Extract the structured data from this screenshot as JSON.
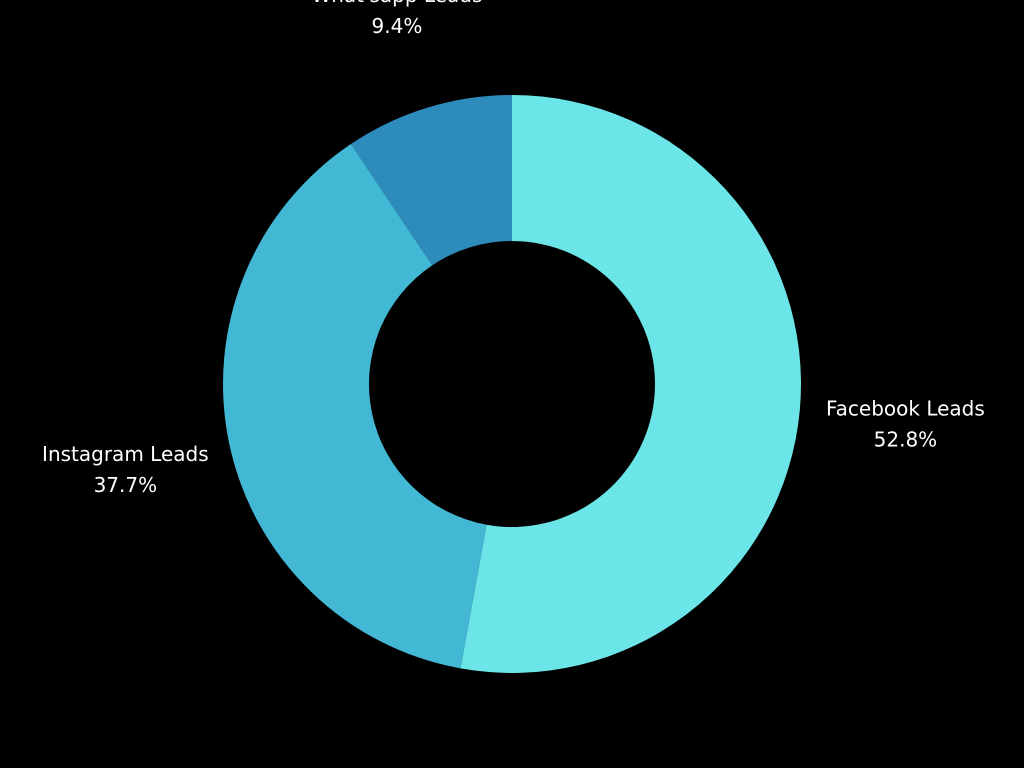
{
  "chart_data": {
    "type": "pie",
    "donut": true,
    "title": "",
    "background": "#000000",
    "slices": [
      {
        "label": "Facebook Leads",
        "value": 52.8,
        "value_label": "52.8%",
        "color": "#6be5e8"
      },
      {
        "label": "Instagram Leads",
        "value": 37.7,
        "value_label": "37.7%",
        "color": "#42b8d5"
      },
      {
        "label": "What'sapp Leads",
        "value": 9.4,
        "value_label": "9.4%",
        "color": "#2e8cbd"
      }
    ],
    "start_angle": "12 o'clock",
    "direction": "clockwise"
  }
}
